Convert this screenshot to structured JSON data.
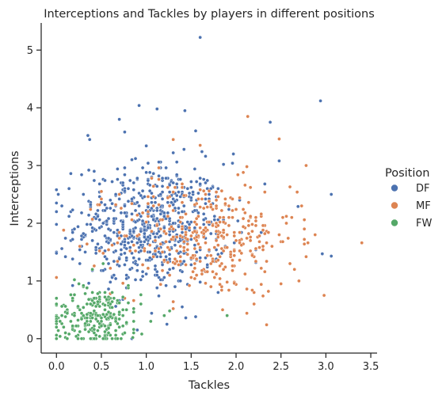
{
  "chart_data": {
    "type": "scatter",
    "title": "Interceptions and Tackles by players in different positions",
    "xlabel": "Tackles",
    "ylabel": "Interceptions",
    "xlim": [
      -0.17,
      3.57
    ],
    "ylim": [
      -0.25,
      5.47
    ],
    "xticks": [
      "0.0",
      "0.5",
      "1.0",
      "1.5",
      "2.0",
      "2.5",
      "3.0",
      "3.5"
    ],
    "yticks": [
      "0",
      "1",
      "2",
      "3",
      "4",
      "5"
    ],
    "grid": false,
    "legend": {
      "title": "Position",
      "placement": "right"
    },
    "series": [
      {
        "name": "DF",
        "color": "#4c72b0",
        "clusters": [
          {
            "cx": 1.05,
            "cy": 1.95,
            "sx": 0.42,
            "sy": 0.55,
            "n": 650
          }
        ],
        "points": [
          [
            1.6,
            5.22
          ],
          [
            2.94,
            4.12
          ],
          [
            0.92,
            4.04
          ],
          [
            1.12,
            3.98
          ],
          [
            1.43,
            3.95
          ],
          [
            2.38,
            3.75
          ],
          [
            0.7,
            3.8
          ],
          [
            0.35,
            3.52
          ],
          [
            0.37,
            3.45
          ],
          [
            0.76,
            3.58
          ],
          [
            1.55,
            3.6
          ],
          [
            1.97,
            3.2
          ],
          [
            2.96,
            1.47
          ],
          [
            3.06,
            1.43
          ],
          [
            3.06,
            2.5
          ],
          [
            0.0,
            2.35
          ],
          [
            0.18,
            2.23
          ],
          [
            2.69,
            2.29
          ],
          [
            2.48,
            3.08
          ],
          [
            1.23,
            0.25
          ],
          [
            1.55,
            0.38
          ],
          [
            1.4,
            0.55
          ],
          [
            0.9,
            0.15
          ]
        ]
      },
      {
        "name": "MF",
        "color": "#dd8452",
        "clusters": [
          {
            "cx": 1.65,
            "cy": 1.75,
            "sx": 0.5,
            "sy": 0.5,
            "n": 370
          }
        ],
        "points": [
          [
            2.13,
            3.85
          ],
          [
            2.78,
            3.0
          ],
          [
            2.6,
            2.63
          ],
          [
            2.73,
            2.3
          ],
          [
            3.4,
            1.66
          ],
          [
            2.98,
            0.75
          ],
          [
            2.7,
            1.0
          ],
          [
            2.65,
            1.2
          ],
          [
            0.0,
            1.06
          ],
          [
            0.3,
            0.9
          ],
          [
            0.4,
            2.07
          ],
          [
            0.5,
            2.55
          ],
          [
            1.85,
            0.5
          ],
          [
            2.2,
            0.6
          ],
          [
            2.5,
            0.95
          ],
          [
            1.3,
            3.45
          ],
          [
            1.6,
            3.35
          ]
        ]
      },
      {
        "name": "FW",
        "color": "#55a868",
        "clusters": [
          {
            "cx": 0.45,
            "cy": 0.38,
            "sx": 0.25,
            "sy": 0.25,
            "n": 230
          }
        ],
        "points": [
          [
            0.0,
            0.6
          ],
          [
            0.0,
            0.3
          ],
          [
            0.0,
            0.2
          ],
          [
            0.12,
            0.0
          ],
          [
            0.28,
            0.0
          ],
          [
            0.62,
            0.0
          ],
          [
            0.85,
            0.02
          ],
          [
            0.95,
            0.08
          ],
          [
            1.05,
            0.3
          ],
          [
            1.2,
            0.4
          ],
          [
            1.9,
            0.4
          ],
          [
            0.2,
            1.02
          ],
          [
            0.4,
            1.2
          ],
          [
            0.52,
            1.3
          ],
          [
            0.8,
            0.92
          ],
          [
            0.25,
            0.95
          ]
        ]
      }
    ]
  }
}
